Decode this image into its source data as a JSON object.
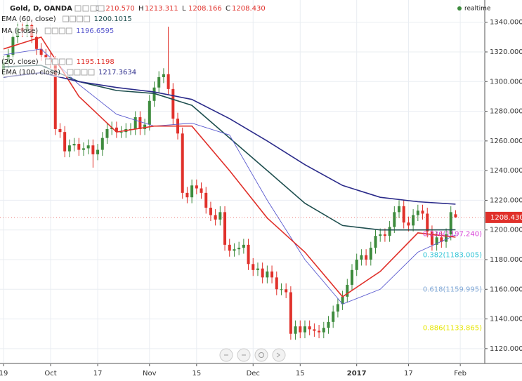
{
  "header": {
    "title": "Gold, D, OANDA",
    "realtime": "realtime",
    "ohlc": [
      {
        "key": "O",
        "value": "1210.570"
      },
      {
        "key": "H",
        "value": "1213.311"
      },
      {
        "key": "L",
        "value": "1208.166"
      },
      {
        "key": "C",
        "value": "1208.430"
      }
    ]
  },
  "chart_data": {
    "type": "candlestick",
    "ylim": [
      1110,
      1355
    ],
    "xlim": [
      -0.75,
      102.2
    ],
    "yticks": [
      {
        "value": 1120,
        "label": "1120.000"
      },
      {
        "value": 1140,
        "label": "1140.000"
      },
      {
        "value": 1160,
        "label": "1160.000"
      },
      {
        "value": 1180,
        "label": "1180.000"
      },
      {
        "value": 1200,
        "label": "1200.000"
      },
      {
        "value": 1220,
        "label": "1220.000"
      },
      {
        "value": 1240,
        "label": "1240.000"
      },
      {
        "value": 1260,
        "label": "1260.000"
      },
      {
        "value": 1280,
        "label": "1280.000"
      },
      {
        "value": 1300,
        "label": "1300.000"
      },
      {
        "value": 1320,
        "label": "1320.000"
      },
      {
        "value": 1340,
        "label": "1340.000"
      }
    ],
    "xticks": [
      {
        "value": 0,
        "label": "19"
      },
      {
        "value": 10,
        "label": "Oct"
      },
      {
        "value": 20,
        "label": "17"
      },
      {
        "value": 31,
        "label": "Nov"
      },
      {
        "value": 41,
        "label": "15"
      },
      {
        "value": 53,
        "label": "Dec"
      },
      {
        "value": 63,
        "label": "15"
      },
      {
        "value": 75,
        "label": "2017"
      },
      {
        "value": 86,
        "label": "17"
      },
      {
        "value": 97,
        "label": "Feb"
      }
    ],
    "grid": true,
    "candles": {
      "up_color": "#3d8b3d",
      "down_color": "#e0302a",
      "open": [
        1308,
        1313,
        1318,
        1330,
        1336,
        1334,
        1338,
        1330,
        1322,
        1318,
        1316,
        1313,
        1268,
        1266,
        1253,
        1257,
        1258,
        1254,
        1255,
        1257,
        1251,
        1254,
        1262,
        1268,
        1269,
        1266,
        1266,
        1268,
        1268,
        1276,
        1268,
        1271,
        1287,
        1296,
        1303,
        1305,
        1295,
        1275,
        1265,
        1225,
        1222,
        1230,
        1228,
        1225,
        1215,
        1210,
        1207,
        1212,
        1190,
        1186,
        1187,
        1188,
        1190,
        1177,
        1173,
        1174,
        1168,
        1172,
        1168,
        1160,
        1160,
        1158,
        1130,
        1135,
        1131,
        1135,
        1133,
        1132,
        1131,
        1134,
        1138,
        1145,
        1150,
        1155,
        1163,
        1173,
        1180,
        1183,
        1180,
        1188,
        1196,
        1197,
        1196,
        1202,
        1212,
        1216,
        1205,
        1203,
        1210,
        1213,
        1211,
        1199,
        1190,
        1195,
        1192,
        1197,
        1210.57
      ],
      "high": [
        1317,
        1322,
        1334,
        1340,
        1340,
        1342,
        1342,
        1334,
        1326,
        1322,
        1320,
        1317,
        1272,
        1270,
        1261,
        1262,
        1262,
        1259,
        1261,
        1261,
        1258,
        1266,
        1272,
        1273,
        1273,
        1270,
        1272,
        1272,
        1280,
        1280,
        1275,
        1291,
        1300,
        1307,
        1309,
        1337,
        1299,
        1279,
        1269,
        1229,
        1234,
        1234,
        1232,
        1229,
        1219,
        1214,
        1216,
        1216,
        1194,
        1191,
        1192,
        1194,
        1194,
        1181,
        1178,
        1178,
        1176,
        1176,
        1172,
        1164,
        1164,
        1162,
        1139,
        1139,
        1139,
        1139,
        1137,
        1136,
        1138,
        1142,
        1149,
        1154,
        1159,
        1167,
        1177,
        1184,
        1187,
        1187,
        1192,
        1200,
        1201,
        1201,
        1206,
        1216,
        1220,
        1220,
        1209,
        1214,
        1217,
        1217,
        1215,
        1203,
        1199,
        1199,
        1201,
        1216,
        1213.311
      ],
      "low": [
        1304,
        1309,
        1314,
        1326,
        1330,
        1330,
        1326,
        1318,
        1314,
        1312,
        1309,
        1264,
        1262,
        1249,
        1249,
        1253,
        1250,
        1250,
        1251,
        1242,
        1247,
        1250,
        1258,
        1264,
        1262,
        1262,
        1262,
        1264,
        1264,
        1264,
        1264,
        1267,
        1283,
        1292,
        1299,
        1291,
        1271,
        1261,
        1221,
        1218,
        1218,
        1224,
        1221,
        1211,
        1206,
        1203,
        1203,
        1186,
        1182,
        1182,
        1183,
        1184,
        1173,
        1169,
        1169,
        1164,
        1164,
        1164,
        1156,
        1156,
        1154,
        1126,
        1126,
        1127,
        1127,
        1129,
        1128,
        1127,
        1127,
        1130,
        1134,
        1141,
        1146,
        1151,
        1159,
        1169,
        1176,
        1176,
        1176,
        1184,
        1192,
        1192,
        1192,
        1198,
        1208,
        1201,
        1199,
        1199,
        1206,
        1207,
        1195,
        1186,
        1186,
        1188,
        1188,
        1193,
        1208.166
      ],
      "close": [
        1313,
        1318,
        1330,
        1336,
        1334,
        1338,
        1330,
        1322,
        1318,
        1316,
        1313,
        1268,
        1266,
        1253,
        1257,
        1258,
        1254,
        1255,
        1257,
        1251,
        1254,
        1262,
        1268,
        1269,
        1266,
        1266,
        1268,
        1268,
        1276,
        1268,
        1271,
        1287,
        1296,
        1303,
        1305,
        1295,
        1275,
        1265,
        1225,
        1222,
        1230,
        1228,
        1225,
        1215,
        1210,
        1207,
        1212,
        1190,
        1186,
        1187,
        1188,
        1190,
        1177,
        1173,
        1174,
        1168,
        1172,
        1168,
        1160,
        1160,
        1158,
        1130,
        1135,
        1131,
        1135,
        1133,
        1132,
        1131,
        1134,
        1138,
        1145,
        1150,
        1155,
        1163,
        1173,
        1180,
        1183,
        1180,
        1188,
        1196,
        1197,
        1196,
        1202,
        1212,
        1216,
        1205,
        1203,
        1210,
        1213,
        1211,
        1199,
        1190,
        1195,
        1192,
        1197,
        1212,
        1208.43
      ]
    },
    "indicators": [
      {
        "name": "EMA (60, close)",
        "value_label": "1200.1015",
        "color": "#1f4f4f",
        "width": 1.6,
        "x": [
          0,
          8,
          16,
          24,
          32,
          40,
          48,
          56,
          64,
          72,
          80,
          88,
          96
        ],
        "values": [
          1310,
          1311,
          1300,
          1294,
          1292,
          1284,
          1262,
          1240,
          1218,
          1203,
          1200,
          1200,
          1200.1015
        ]
      },
      {
        "name": "MA (close)",
        "value_label": "1196.6595",
        "color": "#5b5bcf",
        "width": 0.9,
        "x": [
          0,
          8,
          16,
          24,
          32,
          40,
          48,
          56,
          64,
          72,
          80,
          88,
          96
        ],
        "values": [
          1318,
          1322,
          1298,
          1278,
          1270,
          1272,
          1264,
          1220,
          1180,
          1150,
          1160,
          1185,
          1196.6595
        ]
      },
      {
        "name": "(20, close)",
        "value_label": "1195.1198",
        "color": "#e0302a",
        "width": 1.6,
        "x": [
          0,
          8,
          16,
          24,
          32,
          40,
          48,
          56,
          64,
          72,
          80,
          88,
          96
        ],
        "values": [
          1322,
          1330,
          1290,
          1266,
          1270,
          1270,
          1240,
          1208,
          1185,
          1155,
          1172,
          1198,
          1195.1198
        ]
      },
      {
        "name": "EMA (100, close)",
        "value_label": "1217.3634",
        "color": "#2b2b8a",
        "width": 1.6,
        "x": [
          0,
          8,
          16,
          24,
          32,
          40,
          48,
          56,
          64,
          72,
          80,
          88,
          96
        ],
        "values": [
          1303,
          1306,
          1300,
          1296,
          1293,
          1288,
          1275,
          1260,
          1244,
          1230,
          1222,
          1219,
          1217.3634
        ]
      }
    ],
    "fib_levels": [
      {
        "value": 1197.24,
        "label": "0.236(1197.240)",
        "color": "#d63fd6"
      },
      {
        "value": 1183.005,
        "label": "0.382(1183.005)",
        "color": "#2ec4d6"
      },
      {
        "value": 1159.995,
        "label": "0.618(1159.995)",
        "color": "#7fa7d6"
      },
      {
        "value": 1133.865,
        "label": "0.886(1133.865)",
        "color": "#e6e600"
      }
    ],
    "last_price": {
      "value": 1208.43,
      "label": "1208.430",
      "color": "#e0302a"
    }
  }
}
